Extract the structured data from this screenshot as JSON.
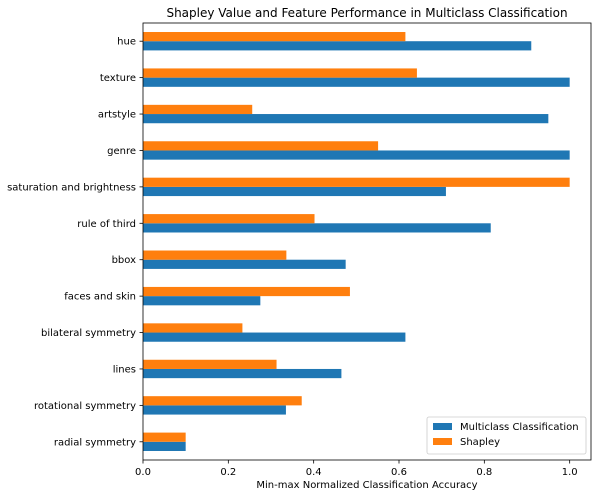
{
  "chart_data": {
    "type": "bar",
    "orientation": "horizontal",
    "title": "Shapley Value and Feature Performance in Multiclass Classification",
    "xlabel": "Min-max Normalized Classification Accuracy",
    "ylabel": "",
    "xlim": [
      0,
      1.05
    ],
    "xticks": [
      "0.0",
      "0.2",
      "0.4",
      "0.6",
      "0.8",
      "1.0"
    ],
    "grid": false,
    "legend_position": "bottom-right",
    "categories": [
      "radial symmetry",
      "rotational symmetry",
      "lines",
      "bilateral symmetry",
      "faces and skin",
      "bbox",
      "rule of third",
      "saturation and brightness",
      "genre",
      "artstyle",
      "texture",
      "hue"
    ],
    "series": [
      {
        "name": "Multiclass Classification",
        "color": "#1f77b4",
        "values": [
          0.1,
          0.335,
          0.465,
          0.615,
          0.275,
          0.475,
          0.815,
          0.71,
          1.0,
          0.95,
          1.0,
          0.91
        ]
      },
      {
        "name": "Shapley",
        "color": "#ff7f0e",
        "values": [
          0.1,
          0.372,
          0.313,
          0.233,
          0.485,
          0.336,
          0.402,
          1.0,
          0.551,
          0.256,
          0.642,
          0.615
        ]
      }
    ]
  }
}
